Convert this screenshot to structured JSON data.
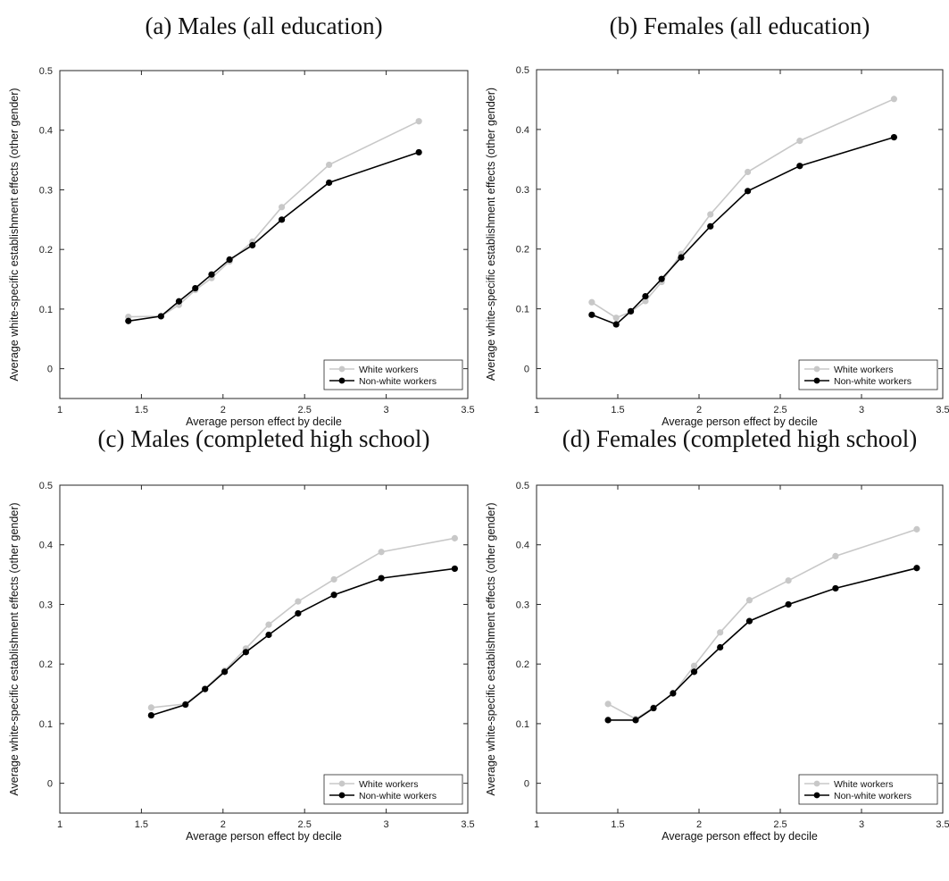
{
  "chart_data": [
    {
      "type": "line",
      "title": "(a) Males (all education)",
      "xlabel": "Average person effect by decile",
      "ylabel": "Average white-specific establishment effects (other gender)",
      "xlim": [
        1,
        3.5
      ],
      "ylim": [
        -0.05,
        0.5
      ],
      "xticks": [
        1,
        1.5,
        2,
        2.5,
        3,
        3.5
      ],
      "yticks": [
        0,
        0.1,
        0.2,
        0.3,
        0.4,
        0.5
      ],
      "xtick_labels": [
        "1",
        "1.5",
        "2",
        "2.5",
        "3",
        "3.5"
      ],
      "ytick_labels": [
        "0",
        "0.1",
        "0.2",
        "0.3",
        "0.4",
        "0.5"
      ],
      "legend_position": "bottom-right",
      "series": [
        {
          "name": "White workers",
          "color": "#c8c8c8",
          "x": [
            1.42,
            1.62,
            1.73,
            1.83,
            1.93,
            2.04,
            2.18,
            2.36,
            2.65,
            3.2
          ],
          "y": [
            0.087,
            0.088,
            0.107,
            0.132,
            0.152,
            0.18,
            0.213,
            0.271,
            0.342,
            0.415
          ]
        },
        {
          "name": "Non-white workers",
          "color": "#000000",
          "x": [
            1.42,
            1.62,
            1.73,
            1.83,
            1.93,
            2.04,
            2.18,
            2.36,
            2.65,
            3.2
          ],
          "y": [
            0.08,
            0.088,
            0.113,
            0.135,
            0.158,
            0.183,
            0.207,
            0.25,
            0.312,
            0.363
          ]
        }
      ]
    },
    {
      "type": "line",
      "title": "(b) Females (all education)",
      "xlabel": "Average person effect by decile",
      "ylabel": "Average white-specific establishment effects (other gender)",
      "xlim": [
        1,
        3.5
      ],
      "ylim": [
        -0.05,
        0.5
      ],
      "xticks": [
        1,
        1.5,
        2,
        2.5,
        3,
        3.5
      ],
      "yticks": [
        0,
        0.1,
        0.2,
        0.3,
        0.4,
        0.5
      ],
      "xtick_labels": [
        "1",
        "1.5",
        "2",
        "2.5",
        "3",
        "3.5"
      ],
      "ytick_labels": [
        "0",
        "0.1",
        "0.2",
        "0.3",
        "0.4",
        "0.5"
      ],
      "legend_position": "bottom-right",
      "series": [
        {
          "name": "White workers",
          "color": "#c8c8c8",
          "x": [
            1.34,
            1.49,
            1.58,
            1.67,
            1.77,
            1.89,
            2.07,
            2.3,
            2.62,
            3.2
          ],
          "y": [
            0.111,
            0.085,
            0.095,
            0.113,
            0.145,
            0.192,
            0.258,
            0.329,
            0.381,
            0.451
          ]
        },
        {
          "name": "Non-white workers",
          "color": "#000000",
          "x": [
            1.34,
            1.49,
            1.58,
            1.67,
            1.77,
            1.89,
            2.07,
            2.3,
            2.62,
            3.2
          ],
          "y": [
            0.09,
            0.074,
            0.096,
            0.121,
            0.15,
            0.186,
            0.238,
            0.297,
            0.339,
            0.387
          ]
        }
      ]
    },
    {
      "type": "line",
      "title": "(c) Males (completed high school)",
      "xlabel": "Average person effect by decile",
      "ylabel": "Average white-specific establishment effects (other gender)",
      "xlim": [
        1,
        3.5
      ],
      "ylim": [
        -0.05,
        0.5
      ],
      "xticks": [
        1,
        1.5,
        2,
        2.5,
        3,
        3.5
      ],
      "yticks": [
        0,
        0.1,
        0.2,
        0.3,
        0.4,
        0.5
      ],
      "xtick_labels": [
        "1",
        "1.5",
        "2",
        "2.5",
        "3",
        "3.5"
      ],
      "ytick_labels": [
        "0",
        "0.1",
        "0.2",
        "0.3",
        "0.4",
        "0.5"
      ],
      "legend_position": "bottom-right",
      "series": [
        {
          "name": "White workers",
          "color": "#c8c8c8",
          "x": [
            1.56,
            1.77,
            1.89,
            2.01,
            2.14,
            2.28,
            2.46,
            2.68,
            2.97,
            3.42
          ],
          "y": [
            0.127,
            0.133,
            0.159,
            0.189,
            0.226,
            0.266,
            0.305,
            0.342,
            0.388,
            0.411
          ]
        },
        {
          "name": "Non-white workers",
          "color": "#000000",
          "x": [
            1.56,
            1.77,
            1.89,
            2.01,
            2.14,
            2.28,
            2.46,
            2.68,
            2.97,
            3.42
          ],
          "y": [
            0.114,
            0.132,
            0.158,
            0.187,
            0.22,
            0.249,
            0.285,
            0.316,
            0.344,
            0.36
          ]
        }
      ]
    },
    {
      "type": "line",
      "title": "(d) Females (completed high school)",
      "xlabel": "Average person effect by decile",
      "ylabel": "Average white-specific establishment effects (other gender)",
      "xlim": [
        1,
        3.5
      ],
      "ylim": [
        -0.05,
        0.5
      ],
      "xticks": [
        1,
        1.5,
        2,
        2.5,
        3,
        3.5
      ],
      "yticks": [
        0,
        0.1,
        0.2,
        0.3,
        0.4,
        0.5
      ],
      "xtick_labels": [
        "1",
        "1.5",
        "2",
        "2.5",
        "3",
        "3.5"
      ],
      "ytick_labels": [
        "0",
        "0.1",
        "0.2",
        "0.3",
        "0.4",
        "0.5"
      ],
      "legend_position": "bottom-right",
      "series": [
        {
          "name": "White workers",
          "color": "#c8c8c8",
          "x": [
            1.44,
            1.61,
            1.72,
            1.84,
            1.97,
            2.13,
            2.31,
            2.55,
            2.84,
            3.34
          ],
          "y": [
            0.133,
            0.108,
            0.127,
            0.15,
            0.197,
            0.253,
            0.307,
            0.34,
            0.381,
            0.426
          ]
        },
        {
          "name": "Non-white workers",
          "color": "#000000",
          "x": [
            1.44,
            1.61,
            1.72,
            1.84,
            1.97,
            2.13,
            2.31,
            2.55,
            2.84,
            3.34
          ],
          "y": [
            0.106,
            0.106,
            0.126,
            0.151,
            0.187,
            0.228,
            0.272,
            0.3,
            0.327,
            0.361
          ]
        }
      ]
    }
  ]
}
